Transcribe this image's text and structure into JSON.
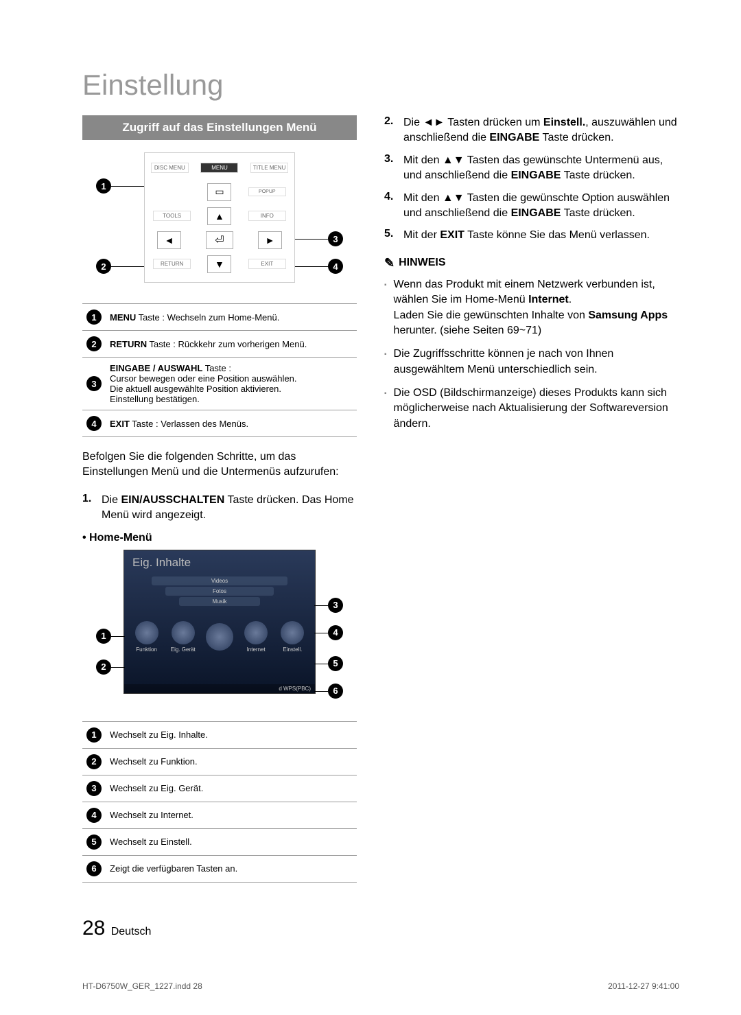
{
  "page_title": "Einstellung",
  "section_header": "Zugriff auf das Einstellungen Menü",
  "remote": {
    "top_row": [
      "DISC MENU",
      "MENU",
      "TITLE MENU"
    ],
    "popup": "POPUP",
    "mid_left": "TOOLS",
    "mid_right": "INFO",
    "return": "RETURN",
    "exit": "EXIT",
    "callout_nums": [
      "1",
      "2",
      "3",
      "4"
    ]
  },
  "legend1": [
    {
      "n": "1",
      "text_pre": "MENU",
      "text": " Taste : Wechseln zum Home-Menü."
    },
    {
      "n": "2",
      "text_pre": "RETURN",
      "text": " Taste : Rückkehr zum vorherigen Menü."
    },
    {
      "n": "3",
      "text_pre": "EINGABE / AUSWAHL",
      "text": " Taste :\nCursor bewegen oder eine Position auswählen.\nDie aktuell ausgewählte Position aktivieren.\nEinstellung bestätigen."
    },
    {
      "n": "4",
      "text_pre": "EXIT",
      "text": " Taste : Verlassen des Menüs."
    }
  ],
  "intro_para": "Befolgen Sie die folgenden Schritte, um das Einstellungen Menü und die Untermenüs aufzurufen:",
  "step1": {
    "n": "1.",
    "text": "Die EIN/AUSSCHALTEN Taste drücken. Das Home Menü wird angezeigt.",
    "bold": "EIN/AUSSCHALTEN"
  },
  "home_label": "• Home-Menü",
  "home_screen": {
    "title": "Eig. Inhalte",
    "pills": [
      "Videos",
      "Fotos",
      "Musik"
    ],
    "tiles": [
      "Funktion",
      "Eig. Gerät",
      "",
      "Internet",
      "Einstell."
    ],
    "wps": "d WPS(PBC)"
  },
  "legend2": [
    {
      "n": "1",
      "text": "Wechselt zu Eig. Inhalte."
    },
    {
      "n": "2",
      "text": "Wechselt zu Funktion."
    },
    {
      "n": "3",
      "text": "Wechselt zu Eig. Gerät."
    },
    {
      "n": "4",
      "text": "Wechselt zu Internet."
    },
    {
      "n": "5",
      "text": "Wechselt zu Einstell."
    },
    {
      "n": "6",
      "text": "Zeigt die verfügbaren Tasten an."
    }
  ],
  "steps_right": [
    {
      "n": "2.",
      "html": "Die ◄► Tasten drücken um <b>Einstell.</b>, auszuwählen und anschließend die <b>EINGABE</b> Taste drücken."
    },
    {
      "n": "3.",
      "html": "Mit den ▲▼ Tasten das gewünschte Untermenü aus, und anschließend die <b>EINGABE</b> Taste drücken."
    },
    {
      "n": "4.",
      "html": "Mit den ▲▼ Tasten die gewünschte Option auswählen und anschließend die <b>EINGABE</b> Taste drücken."
    },
    {
      "n": "5.",
      "html": "Mit der <b>EXIT</b> Taste könne Sie das Menü verlassen."
    }
  ],
  "hinweis_label": "HINWEIS",
  "hinweis_items": [
    "Wenn das Produkt mit einem Netzwerk verbunden ist, wählen Sie im Home-Menü <b>Internet</b>.<br>Laden Sie die gewünschten Inhalte von <b>Samsung Apps</b> herunter. (siehe Seiten 69~71)",
    "Die Zugriffsschritte können je nach von Ihnen ausgewähltem Menü unterschiedlich sein.",
    "Die OSD (Bildschirmanzeige) dieses Produkts kann sich möglicherweise nach Aktualisierung der Softwareversion ändern."
  ],
  "page_number": "28",
  "page_lang": "Deutsch",
  "footer_left": "HT-D6750W_GER_1227.indd   28",
  "footer_right": "2011-12-27      9:41:00"
}
